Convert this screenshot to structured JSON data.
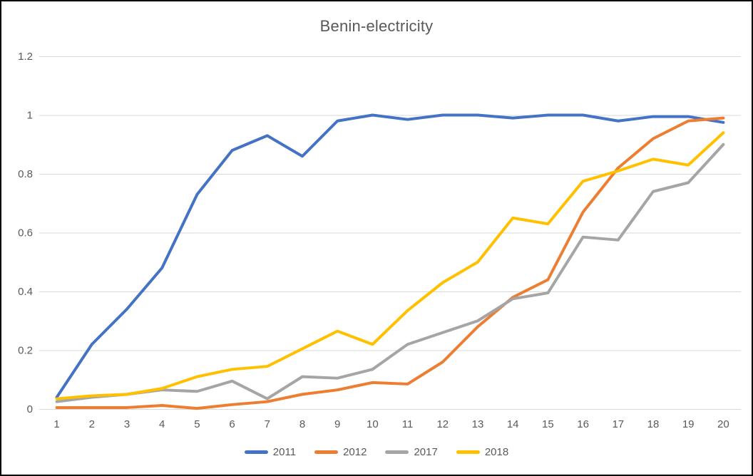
{
  "window": {
    "background_color": "#FFFFFF",
    "border_color": "#000000",
    "text_color": "#595959",
    "gridline_color": "#D9D9D9"
  },
  "chart_data": {
    "type": "line",
    "title": "Benin-electricity",
    "xlabel": "",
    "ylabel": "",
    "x": [
      1,
      2,
      3,
      4,
      5,
      6,
      7,
      8,
      9,
      10,
      11,
      12,
      13,
      14,
      15,
      16,
      17,
      18,
      19,
      20
    ],
    "ylim": [
      0,
      1.2
    ],
    "y_ticks": [
      0,
      0.2,
      0.4,
      0.6,
      0.8,
      1,
      1.2
    ],
    "y_tick_labels": [
      "0",
      "0.2",
      "0.4",
      "0.6",
      "0.8",
      "1",
      "1.2"
    ],
    "grid": true,
    "legend_position": "bottom",
    "series": [
      {
        "name": "2011",
        "color": "#4472C4",
        "values": [
          0.04,
          0.22,
          0.34,
          0.48,
          0.73,
          0.88,
          0.93,
          0.86,
          0.98,
          1.0,
          0.985,
          1.0,
          1.0,
          0.99,
          1.0,
          1.0,
          0.98,
          0.995,
          0.995,
          0.975
        ]
      },
      {
        "name": "2012",
        "color": "#ED7D31",
        "values": [
          0.005,
          0.005,
          0.005,
          0.012,
          0.002,
          0.015,
          0.025,
          0.05,
          0.065,
          0.09,
          0.085,
          0.16,
          0.28,
          0.38,
          0.44,
          0.67,
          0.82,
          0.92,
          0.98,
          0.99
        ]
      },
      {
        "name": "2017",
        "color": "#A5A5A5",
        "values": [
          0.025,
          0.04,
          0.05,
          0.065,
          0.06,
          0.095,
          0.035,
          0.11,
          0.105,
          0.135,
          0.22,
          0.26,
          0.3,
          0.375,
          0.395,
          0.585,
          0.575,
          0.74,
          0.77,
          0.9
        ]
      },
      {
        "name": "2018",
        "color": "#FFC000",
        "values": [
          0.035,
          0.045,
          0.05,
          0.07,
          0.11,
          0.135,
          0.145,
          0.205,
          0.265,
          0.22,
          0.335,
          0.43,
          0.5,
          0.65,
          0.63,
          0.775,
          0.81,
          0.85,
          0.83,
          0.94
        ]
      }
    ]
  }
}
